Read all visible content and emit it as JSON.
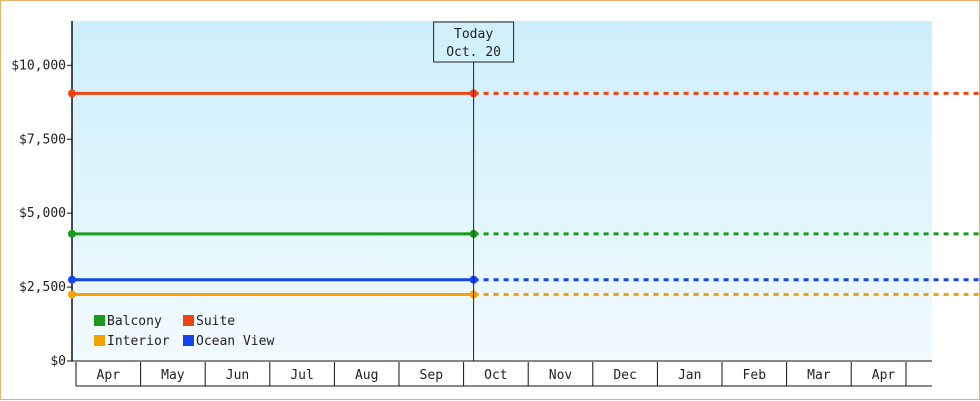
{
  "chart_data": {
    "type": "line",
    "today_marker": {
      "line1": "Today",
      "line2": "Oct. 20",
      "month": "Oct"
    },
    "categories": [
      "Apr",
      "May",
      "Jun",
      "Jul",
      "Aug",
      "Sep",
      "Oct",
      "Nov",
      "Dec",
      "Jan",
      "Feb",
      "Mar",
      "Apr"
    ],
    "y_ticks": [
      {
        "value": 0,
        "label": "$0"
      },
      {
        "value": 2500,
        "label": "$2,500"
      },
      {
        "value": 5000,
        "label": "$5,000"
      },
      {
        "value": 7500,
        "label": "$7,500"
      },
      {
        "value": 10000,
        "label": "$10,000"
      }
    ],
    "ylim": [
      0,
      11500
    ],
    "grid": false,
    "legend": "bottom-left",
    "series": [
      {
        "name": "Balcony",
        "color": "#1a9a1a",
        "value": 4300,
        "start": "Apr",
        "end": "Oct"
      },
      {
        "name": "Suite",
        "color": "#ee4411",
        "value": 9050,
        "start": "Apr",
        "end": "Oct"
      },
      {
        "name": "Interior",
        "color": "#f5a300",
        "value": 2250,
        "start": "Apr",
        "end": "Oct"
      },
      {
        "name": "Ocean View",
        "color": "#1144ee",
        "value": 2750,
        "start": "Apr",
        "end": "Oct"
      }
    ],
    "projection": "dotted lines continue each series after Today"
  },
  "colors": {
    "plot_top": "#cdeffb",
    "plot_bottom": "#f2fbfe",
    "frame_border": "#e8b26a"
  }
}
